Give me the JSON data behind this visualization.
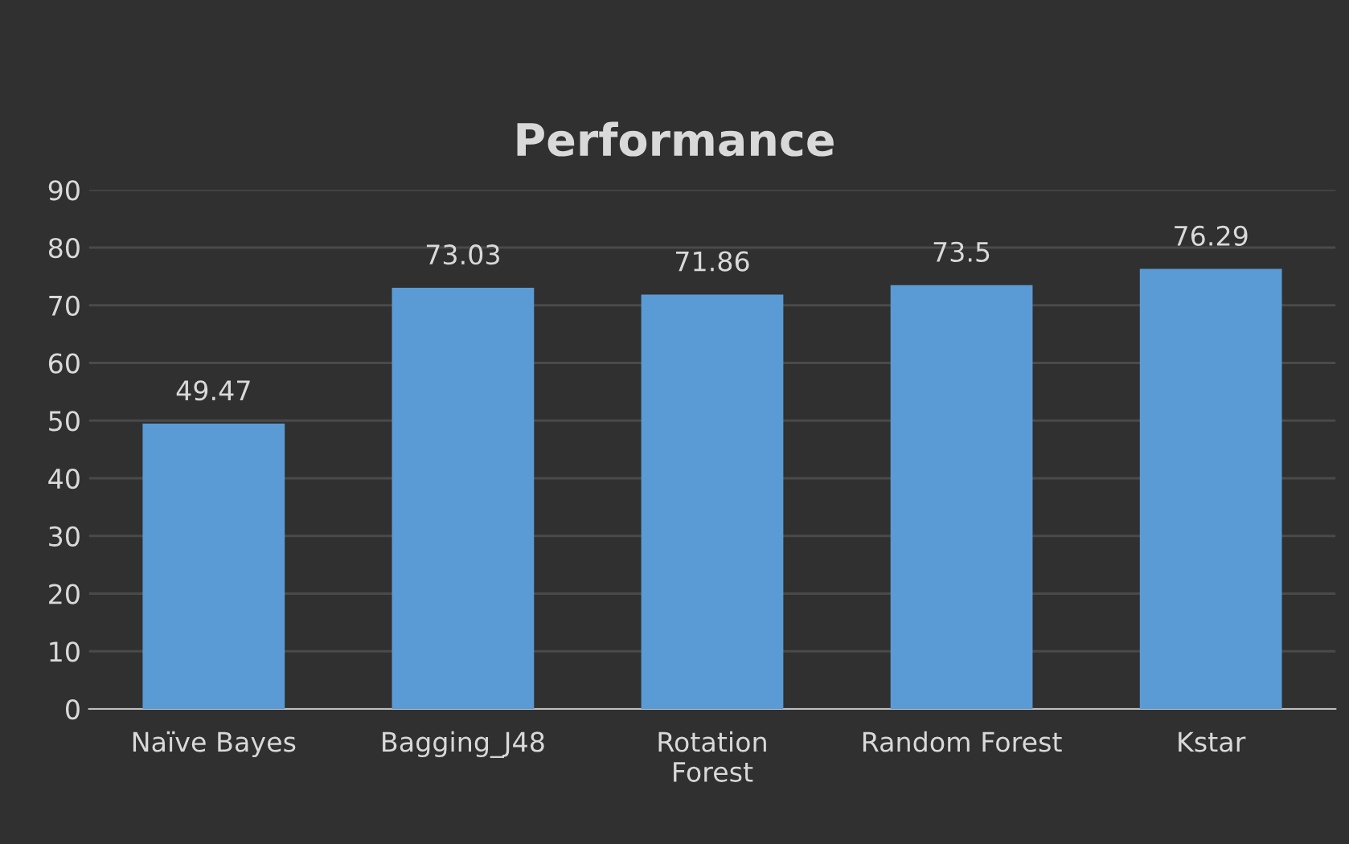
{
  "chart_data": {
    "type": "bar",
    "title": "Performance",
    "categories": [
      "Naïve Bayes",
      "Bagging_J48",
      "Rotation\nForest",
      "Random Forest",
      "Kstar"
    ],
    "values": [
      49.47,
      73.03,
      71.86,
      73.5,
      76.29
    ],
    "color": "#5b9bd5",
    "ylim": [
      0,
      90
    ],
    "yticks": [
      0,
      10,
      20,
      30,
      40,
      50,
      60,
      70,
      80,
      90
    ],
    "grid": "y",
    "data_labels": true
  }
}
